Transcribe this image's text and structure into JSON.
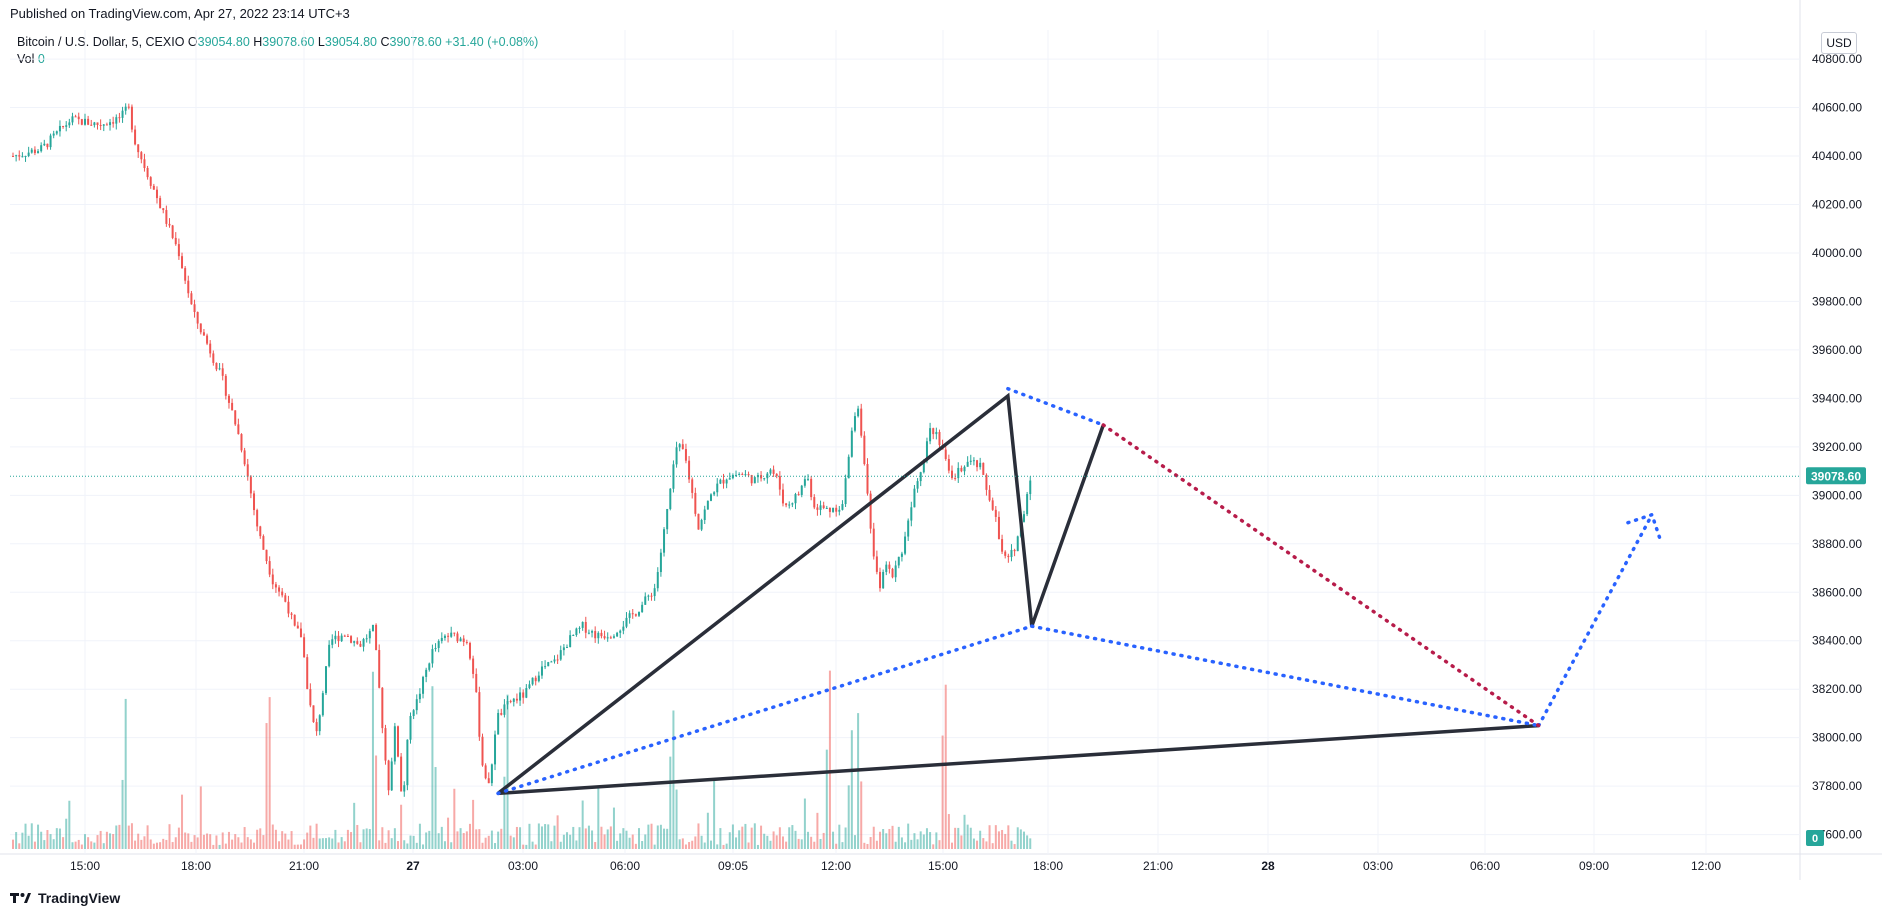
{
  "header": {
    "published": "Published on TradingView.com, Apr 27, 2022 23:14 UTC+3"
  },
  "legend": {
    "symbol": "Bitcoin / U.S. Dollar, 5, CEXIO",
    "o_label": "O",
    "o_value": "39054.80",
    "h_label": "H",
    "h_value": "39078.60",
    "l_label": "L",
    "l_value": "39054.80",
    "c_label": "C",
    "c_value": "39078.60",
    "change": "+31.40 (+0.08%)",
    "vol_label": "Vol",
    "vol_value": "0"
  },
  "currency": "USD",
  "footer": {
    "brand": "TradingView"
  },
  "colors": {
    "up": "#26a69a",
    "down": "#ef5350",
    "pattern": "#2a2e39",
    "blue_dots": "#2962ff",
    "red_dots": "#b71c4a",
    "last_price": "#26a69a"
  },
  "chart_data": {
    "type": "candlestick",
    "symbol": "BTCUSD",
    "interval": "5",
    "exchange": "CEXIO",
    "y_range": [
      37520,
      40920
    ],
    "y_ticks": [
      "40800.00",
      "40600.00",
      "40400.00",
      "40200.00",
      "40000.00",
      "39800.00",
      "39600.00",
      "39400.00",
      "39200.00",
      "39000.00",
      "38800.00",
      "38600.00",
      "38400.00",
      "38200.00",
      "38000.00",
      "37800.00",
      "37600.00"
    ],
    "x_ticks": [
      {
        "label": "15:00",
        "bold": false
      },
      {
        "label": "18:00",
        "bold": false
      },
      {
        "label": "21:00",
        "bold": false
      },
      {
        "label": "27",
        "bold": true
      },
      {
        "label": "03:00",
        "bold": false
      },
      {
        "label": "06:00",
        "bold": false
      },
      {
        "label": "09:05",
        "bold": false
      },
      {
        "label": "12:00",
        "bold": false
      },
      {
        "label": "15:00",
        "bold": false
      },
      {
        "label": "18:00",
        "bold": false
      },
      {
        "label": "21:00",
        "bold": false
      },
      {
        "label": "28",
        "bold": true
      },
      {
        "label": "03:00",
        "bold": false
      },
      {
        "label": "06:00",
        "bold": false
      },
      {
        "label": "09:00",
        "bold": false
      },
      {
        "label": "12:00",
        "bold": false
      }
    ],
    "last_price": "39078.60",
    "volume_axis_label": "0",
    "price_path": [
      [
        0,
        40400
      ],
      [
        4,
        40430
      ],
      [
        8,
        40550
      ],
      [
        12,
        40530
      ],
      [
        15,
        40560
      ],
      [
        16,
        40600
      ],
      [
        17,
        40450
      ],
      [
        19,
        40300
      ],
      [
        21,
        40150
      ],
      [
        23,
        40000
      ],
      [
        25,
        39750
      ],
      [
        27,
        39620
      ],
      [
        29,
        39480
      ],
      [
        31,
        39280
      ],
      [
        32,
        39160
      ],
      [
        34,
        38850
      ],
      [
        36,
        38650
      ],
      [
        38,
        38550
      ],
      [
        39,
        38450
      ],
      [
        40,
        38420
      ],
      [
        41,
        38160
      ],
      [
        42,
        38000
      ],
      [
        44,
        38400
      ],
      [
        46,
        38430
      ],
      [
        48,
        38380
      ],
      [
        50,
        38450
      ],
      [
        51,
        38120
      ],
      [
        52,
        37780
      ],
      [
        53,
        38050
      ],
      [
        54,
        37720
      ],
      [
        55,
        38100
      ],
      [
        56,
        38150
      ],
      [
        58,
        38350
      ],
      [
        60,
        38420
      ],
      [
        61,
        38420
      ],
      [
        63,
        38400
      ],
      [
        64,
        38240
      ],
      [
        65,
        37900
      ],
      [
        66,
        37790
      ],
      [
        67,
        38080
      ],
      [
        69,
        38150
      ],
      [
        71,
        38180
      ],
      [
        73,
        38280
      ],
      [
        75,
        38310
      ],
      [
        77,
        38400
      ],
      [
        79,
        38460
      ],
      [
        81,
        38420
      ],
      [
        83,
        38430
      ],
      [
        85,
        38480
      ],
      [
        87,
        38540
      ],
      [
        89,
        38620
      ],
      [
        90,
        38800
      ],
      [
        91,
        39000
      ],
      [
        92,
        39200
      ],
      [
        93,
        39180
      ],
      [
        94,
        39030
      ],
      [
        95,
        38870
      ],
      [
        97,
        39020
      ],
      [
        99,
        39080
      ],
      [
        101,
        39090
      ],
      [
        103,
        39060
      ],
      [
        105,
        39110
      ],
      [
        106,
        39060
      ],
      [
        107,
        38950
      ],
      [
        109,
        39010
      ],
      [
        110,
        39090
      ],
      [
        111,
        38960
      ],
      [
        113,
        38940
      ],
      [
        115,
        38960
      ],
      [
        116,
        39200
      ],
      [
        117,
        39400
      ],
      [
        118,
        39150
      ],
      [
        119,
        38800
      ],
      [
        120,
        38620
      ],
      [
        121,
        38700
      ],
      [
        122,
        38680
      ],
      [
        123,
        38750
      ],
      [
        124,
        38880
      ],
      [
        125,
        39050
      ],
      [
        126,
        39120
      ],
      [
        127,
        39280
      ],
      [
        128,
        39260
      ],
      [
        129,
        39180
      ],
      [
        130,
        39050
      ],
      [
        132,
        39140
      ],
      [
        134,
        39120
      ],
      [
        135,
        39020
      ],
      [
        136,
        38940
      ],
      [
        137,
        38760
      ],
      [
        138,
        38730
      ],
      [
        139,
        38800
      ],
      [
        140,
        38920
      ],
      [
        141,
        39078
      ]
    ],
    "volume_spike_bars": [
      15,
      35,
      50,
      58,
      68,
      91,
      113,
      116,
      117,
      129
    ],
    "drawings": {
      "black_pattern": [
        [
          "2022-04-27 02:25",
          37770
        ],
        [
          "2022-04-27 16:40",
          39410
        ],
        [
          "2022-04-27 17:20",
          38460
        ],
        [
          "2022-04-27 19:20",
          39290
        ]
      ],
      "black_base_line": [
        [
          "2022-04-27 02:25",
          37770
        ],
        [
          "2022-04-28 07:30",
          38050
        ]
      ],
      "blue_dotted_lines": [
        [
          [
            "2022-04-27 02:25",
            37770
          ],
          [
            "2022-04-27 17:20",
            38460
          ]
        ],
        [
          [
            "2022-04-27 17:20",
            38460
          ],
          [
            "2022-04-28 07:30",
            38050
          ]
        ],
        [
          [
            "2022-04-27 16:40",
            39440
          ],
          [
            "2022-04-27 19:20",
            39290
          ]
        ],
        [
          [
            "2022-04-28 07:30",
            38050
          ],
          [
            "2022-04-28 10:40",
            38920
          ]
        ]
      ],
      "red_dotted_line": [
        [
          "2022-04-27 19:20",
          39290
        ],
        [
          "2022-04-28 07:30",
          38050
        ]
      ]
    }
  }
}
